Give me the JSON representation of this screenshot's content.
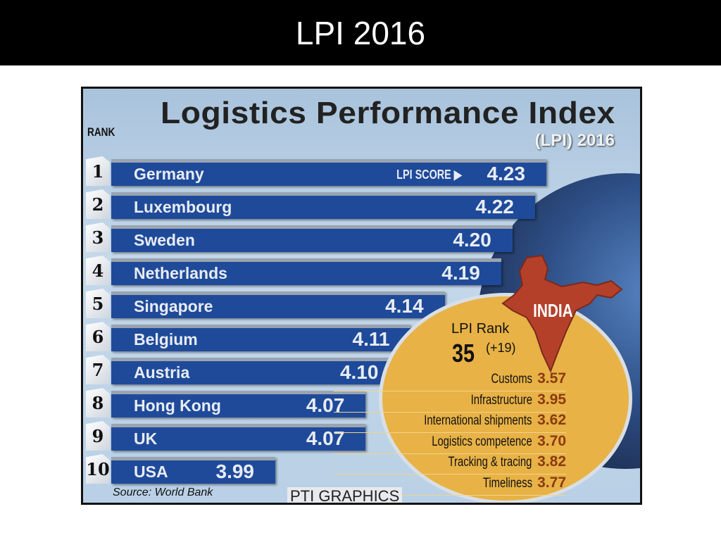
{
  "slide_title": "LPI 2016",
  "chart_data": {
    "type": "bar",
    "title": "Logistics Performance Index",
    "subtitle": "(LPI) 2016",
    "rank_header": "RANK",
    "score_label": "LPI SCORE ▶",
    "categories": [
      "Germany",
      "Luxembourg",
      "Sweden",
      "Netherlands",
      "Singapore",
      "Belgium",
      "Austria",
      "Hong Kong",
      "UK",
      "USA"
    ],
    "ranks": [
      "1",
      "2",
      "3",
      "4",
      "5",
      "6",
      "7",
      "8",
      "9",
      "10"
    ],
    "values": [
      4.23,
      4.22,
      4.2,
      4.19,
      4.14,
      4.11,
      4.1,
      4.07,
      4.07,
      3.99
    ],
    "value_labels": [
      "4.23",
      "4.22",
      "4.20",
      "4.19",
      "4.14",
      "4.11",
      "4.10",
      "4.07",
      "4.07",
      "3.99"
    ],
    "india": {
      "label": "INDIA",
      "rank_label": "LPI Rank",
      "rank": "35",
      "rank_change": "(+19)",
      "indicators": [
        {
          "name": "Customs",
          "value": "3.57"
        },
        {
          "name": "Infrastructure",
          "value": "3.95"
        },
        {
          "name": "International shipments",
          "value": "3.62"
        },
        {
          "name": "Logistics competence",
          "value": "3.70"
        },
        {
          "name": "Tracking & tracing",
          "value": "3.82"
        },
        {
          "name": "Timeliness",
          "value": "3.77"
        }
      ]
    },
    "source": "Source: World Bank",
    "credit": "PTI GRAPHICS"
  },
  "colors": {
    "bar": "#1f4a9a",
    "circle": "#e8b246",
    "india": "#b5402a",
    "value": "#8a3a12"
  }
}
